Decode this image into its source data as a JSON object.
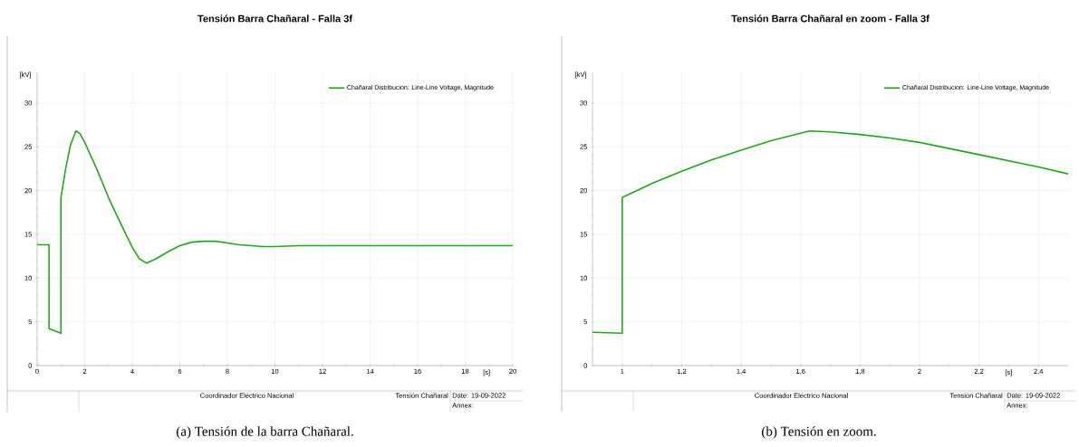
{
  "chart_data": [
    {
      "type": "line",
      "title": "Tensión Barra Chañaral - Falla 3f",
      "xlabel": "[s]",
      "ylabel": "[kV]",
      "x": [
        0,
        0.5,
        0.5,
        1.0,
        1.0,
        1.2,
        1.4,
        1.63,
        1.8,
        2.0,
        2.5,
        3.0,
        3.5,
        4.0,
        4.3,
        4.6,
        5.0,
        5.5,
        6.0,
        6.5,
        7.0,
        7.5,
        8.0,
        8.5,
        9.0,
        9.5,
        10,
        11,
        12,
        14,
        20
      ],
      "series": [
        {
          "name": "Chañaral Distribucion: Line-Line Voltage, Magnitude",
          "color": "#22a61c",
          "values": [
            13.8,
            13.8,
            4.2,
            3.7,
            19.2,
            22.5,
            25.2,
            26.8,
            26.5,
            25.5,
            22.5,
            19.2,
            16.3,
            13.5,
            12.2,
            11.7,
            12.2,
            13.0,
            13.7,
            14.1,
            14.2,
            14.2,
            14.0,
            13.8,
            13.7,
            13.6,
            13.6,
            13.7,
            13.7,
            13.7,
            13.7
          ]
        }
      ],
      "xlim": [
        0,
        20
      ],
      "ylim": [
        0,
        33.5
      ],
      "xticks": [
        0,
        2,
        4,
        6,
        8,
        10,
        12,
        14,
        16,
        18,
        20
      ],
      "yticks": [
        0,
        5,
        10,
        15,
        20,
        25,
        30
      ],
      "grid": true,
      "legend": "top right",
      "line_style": "solid",
      "marker": "none",
      "annotations": [
        "Coordinador Eléctrico Nacional",
        "Tensión Chañaral",
        "Date: 19-09-2022",
        "Annex:",
        "(a) Tensión de la barra Chañaral."
      ]
    },
    {
      "type": "line",
      "title": "Tensión Barra Chañaral en zoom - Falla 3f",
      "xlabel": "[s]",
      "ylabel": "[kV]",
      "x": [
        0.9,
        1.0,
        1.0,
        1.1,
        1.2,
        1.3,
        1.4,
        1.5,
        1.63,
        1.7,
        1.8,
        1.9,
        2.0,
        2.1,
        2.2,
        2.3,
        2.4,
        2.5
      ],
      "series": [
        {
          "name": "Chañaral Distribucion: Line-Line Voltage, Magnitude",
          "color": "#22a61c",
          "values": [
            3.8,
            3.7,
            19.2,
            20.8,
            22.2,
            23.5,
            24.6,
            25.7,
            26.8,
            26.7,
            26.4,
            26.0,
            25.5,
            24.8,
            24.1,
            23.4,
            22.7,
            21.9
          ]
        }
      ],
      "xlim": [
        0.9,
        2.5
      ],
      "ylim": [
        0,
        33.5
      ],
      "xticks": [
        1,
        {
          "value": 1.2,
          "label": "1,2"
        },
        {
          "value": 1.4,
          "label": "1,4"
        },
        {
          "value": 1.6,
          "label": "1,6"
        },
        {
          "value": 1.8,
          "label": "1,8"
        },
        2,
        {
          "value": 2.2,
          "label": "2,2"
        },
        {
          "value": 2.4,
          "label": "2,4"
        }
      ],
      "yticks": [
        0,
        5,
        10,
        15,
        20,
        25,
        30
      ],
      "grid": true,
      "legend": "top right",
      "line_style": "solid",
      "marker": "none",
      "annotations": [
        "Coordinador Eléctrico Nacional",
        "Tensión Chañaral",
        "Date: 19-09-2022",
        "Annex:",
        "(b) Tensión en zoom."
      ]
    }
  ]
}
